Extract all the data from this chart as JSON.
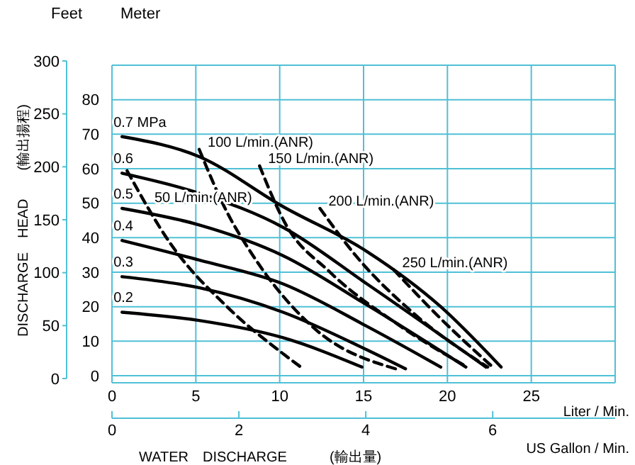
{
  "chart_data": {
    "type": "line",
    "xlabel": "Liter / Min.",
    "x2label": "US Gallon / Min.",
    "ylabel": "Meter",
    "y2label": "Feet",
    "xlim": [
      0,
      30
    ],
    "xticks": [
      0,
      5,
      10,
      15,
      20,
      25,
      {
        "value": 30,
        "label": null
      }
    ],
    "x2lim": [
      0,
      7.93
    ],
    "x2ticks": [
      0,
      2,
      4,
      6
    ],
    "ylim": [
      0,
      90
    ],
    "yticks": [
      0,
      10,
      20,
      30,
      40,
      50,
      60,
      70,
      80,
      {
        "value": 90,
        "label": null
      }
    ],
    "y2lim": [
      0,
      300
    ],
    "y2ticks": [
      0,
      50,
      100,
      150,
      200,
      250,
      300
    ],
    "grid": true,
    "marker": "none",
    "series": [
      {
        "name": "0.7 MPa",
        "color": "#000000",
        "line_style": "solid",
        "x": [
          0.6,
          5.2,
          10.2,
          15.2,
          19.6,
          23.2
        ],
        "values": [
          69.3,
          63.5,
          49,
          36,
          20,
          2.5
        ]
      },
      {
        "name": "0.6",
        "color": "#000000",
        "line_style": "solid",
        "x": [
          0.6,
          5.2,
          10.2,
          15.2,
          22.3
        ],
        "values": [
          58.7,
          52.9,
          43,
          26.6,
          2.5
        ]
      },
      {
        "name": "0.5",
        "color": "#000000",
        "line_style": "solid",
        "x": [
          0.6,
          5.2,
          10.2,
          15.2,
          21.1
        ],
        "values": [
          48.5,
          43.7,
          34.8,
          20.5,
          2.5
        ]
      },
      {
        "name": "0.4",
        "color": "#000000",
        "line_style": "solid",
        "x": [
          0.6,
          5.2,
          10.2,
          15.2,
          19.6
        ],
        "values": [
          39.2,
          33.5,
          26.6,
          14.3,
          2.5
        ]
      },
      {
        "name": "0.3",
        "color": "#000000",
        "line_style": "solid",
        "x": [
          0.6,
          5.2,
          10.2,
          15.2,
          17.5
        ],
        "values": [
          28.7,
          25.5,
          18.4,
          7.5,
          2
        ]
      },
      {
        "name": "0.2",
        "color": "#000000",
        "line_style": "solid",
        "x": [
          0.6,
          5.2,
          10.2,
          14.9
        ],
        "values": [
          18.4,
          16,
          11,
          2.5
        ]
      },
      {
        "name": "50 L/min.(ANR)",
        "color": "#000000",
        "line_style": "dashed",
        "x": [
          0.9,
          3.5,
          6.9,
          10.3,
          11.4
        ],
        "values": [
          59.4,
          38.2,
          19.8,
          6,
          2
        ]
      },
      {
        "name": "100 L/min.(ANR)",
        "color": "#000000",
        "line_style": "dashed",
        "x": [
          5.2,
          6.9,
          8.3,
          12,
          16.9
        ],
        "values": [
          65.6,
          47,
          35.6,
          14,
          2
        ]
      },
      {
        "name": "150 L/min.(ANR)",
        "color": "#000000",
        "line_style": "dashed",
        "x": [
          8.8,
          10.3,
          13,
          17,
          21
        ],
        "values": [
          60.8,
          44.4,
          30,
          15,
          3
        ]
      },
      {
        "name": "200 L/min.(ANR)",
        "color": "#000000",
        "line_style": "dashed",
        "x": [
          12.4,
          14.5,
          18,
          22.4
        ],
        "values": [
          48.5,
          35,
          18,
          2.5
        ]
      },
      {
        "name": "250 L/min.(ANR)",
        "color": "#000000",
        "line_style": "dashed",
        "x": [
          16.8,
          19.5,
          22.7
        ],
        "values": [
          30.7,
          17,
          2.5
        ]
      }
    ],
    "annotations": [
      "WATER　DISCHARGE　　　(輸出量)",
      "DISCHARGE　HEAD　　(輸出揚程)"
    ]
  }
}
